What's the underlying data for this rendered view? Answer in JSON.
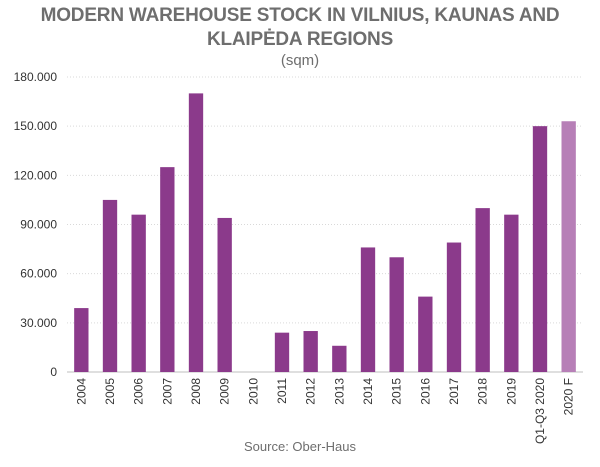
{
  "chart_data": {
    "type": "bar",
    "title_line1": "MODERN WAREHOUSE STOCK IN VILNIUS, KAUNAS AND",
    "title_line2": "KLAIPĖDA REGIONS",
    "subtitle": "(sqm)",
    "source": "Source: Ober-Haus",
    "categories": [
      "2004",
      "2005",
      "2006",
      "2007",
      "2008",
      "2009",
      "2010",
      "2011",
      "2012",
      "2013",
      "2014",
      "2015",
      "2016",
      "2017",
      "2018",
      "2019",
      "Q1-Q3 2020",
      "2020 F"
    ],
    "values": [
      39000,
      105000,
      96000,
      125000,
      170000,
      94000,
      0,
      24000,
      25000,
      16000,
      76000,
      70000,
      46000,
      79000,
      100000,
      96000,
      150000,
      153000
    ],
    "yticks": [
      "0",
      "30.000",
      "60.000",
      "90.000",
      "120.000",
      "150.000",
      "180.000"
    ],
    "ylim": [
      0,
      180000
    ],
    "grid": true,
    "colors": {
      "bar": "#8b3a8b",
      "forecast": "#b77fb7",
      "grid": "#d9d9d9"
    }
  }
}
